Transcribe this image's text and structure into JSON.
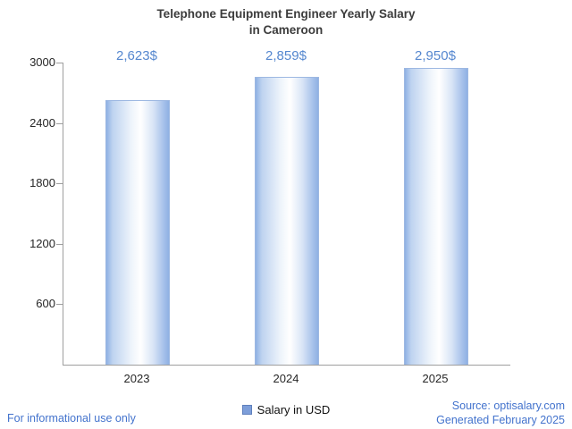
{
  "chart_data": {
    "type": "bar",
    "title": "Telephone Equipment Engineer Yearly Salary in Cameroon",
    "title_lines": [
      "Telephone Equipment Engineer Yearly Salary",
      "in Cameroon"
    ],
    "categories": [
      "2023",
      "2024",
      "2025"
    ],
    "values": [
      2623,
      2859,
      2950
    ],
    "value_labels": [
      "2,623$",
      "2,859$",
      "2,950$"
    ],
    "ylim": [
      0,
      3000
    ],
    "yticks": [
      600,
      1200,
      1800,
      2400,
      3000
    ],
    "legend": "Salary in USD",
    "legend_position": "bottom-center",
    "grid": false,
    "bar_fill_color": "#a9c6ee",
    "bar_edge_color": "#9db8e2",
    "value_label_color": "#5587cf",
    "axis_color": "#9e9e9e",
    "title_color": "#3c3c3c"
  },
  "footer": {
    "left": "For informational use only",
    "source": "Source: optisalary.com",
    "generated": "Generated February 2025",
    "accent_color": "#4373cd"
  }
}
